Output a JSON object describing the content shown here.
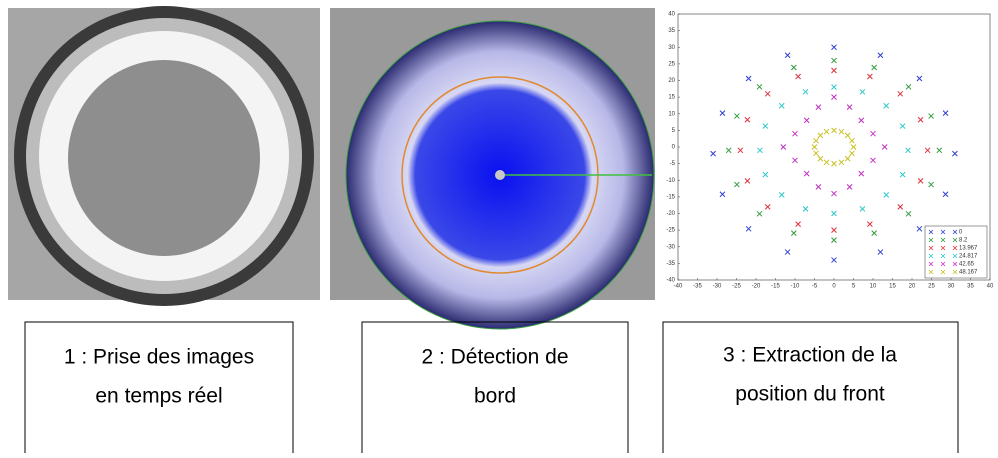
{
  "chart_data": {
    "type": "scatter",
    "xlim": [
      -40,
      40
    ],
    "ylim": [
      -40,
      40
    ],
    "xticks": [
      -40,
      -35,
      -30,
      -25,
      -20,
      -15,
      -10,
      -5,
      0,
      5,
      10,
      15,
      20,
      25,
      30,
      35,
      40
    ],
    "yticks": [
      -40,
      -35,
      -30,
      -25,
      -20,
      -15,
      -10,
      -5,
      0,
      5,
      10,
      15,
      20,
      25,
      30,
      35,
      40
    ],
    "legend": "lower right",
    "series": [
      {
        "name": "0",
        "color": "#2e3fd0",
        "x": [
          31,
          28.6,
          21.9,
          11.9,
          0,
          -11.9,
          -21.9,
          -28.6,
          -31,
          -28.6,
          -21.9,
          -11.9,
          0,
          11.9,
          21.9,
          28.6
        ],
        "values": [
          -2,
          10.2,
          20.6,
          27.6,
          30,
          27.6,
          20.6,
          10.2,
          -2,
          -14.2,
          -24.6,
          -31.6,
          -34,
          -31.6,
          -24.6,
          -14.2
        ]
      },
      {
        "name": "8.2",
        "color": "#2e9a3a",
        "x": [
          27,
          24.9,
          19.1,
          10.3,
          0,
          -10.3,
          -19.1,
          -24.9,
          -27,
          -24.9,
          -19.1,
          -10.3,
          0,
          10.3,
          19.1,
          24.9
        ],
        "values": [
          -1,
          9.3,
          18.1,
          23.9,
          26,
          23.9,
          18.1,
          9.3,
          -1,
          -11.3,
          -20.1,
          -25.9,
          -28,
          -25.9,
          -20.1,
          -11.3
        ]
      },
      {
        "name": "13.967",
        "color": "#e0303a",
        "x": [
          24,
          22.2,
          17,
          9.2,
          0,
          -9.2,
          -17,
          -22.2,
          -24,
          -22.2,
          -17,
          -9.2,
          0,
          9.2,
          17,
          22.2
        ],
        "values": [
          -1,
          8.2,
          16,
          21.2,
          23,
          21.2,
          16,
          8.2,
          -1,
          -10.2,
          -18,
          -23.2,
          -25,
          -23.2,
          -18,
          -10.2
        ]
      },
      {
        "name": "24.817",
        "color": "#2ec8c8",
        "x": [
          19,
          17.6,
          13.4,
          7.3,
          0,
          -7.3,
          -13.4,
          -17.6,
          -19,
          -17.6,
          -13.4,
          -7.3,
          0,
          7.3,
          13.4,
          17.6
        ],
        "values": [
          -1,
          6.3,
          12.4,
          16.6,
          18,
          16.6,
          12.4,
          6.3,
          -1,
          -8.3,
          -14.4,
          -18.6,
          -20,
          -18.6,
          -14.4,
          -8.3
        ]
      },
      {
        "name": "42.65",
        "color": "#c030c0",
        "x": [
          13,
          10,
          7,
          4,
          0,
          -4,
          -7,
          -10,
          -13,
          -10,
          -7,
          -4,
          0,
          4,
          7,
          10
        ],
        "values": [
          0,
          4,
          8,
          12,
          15,
          12,
          8,
          4,
          0,
          -4,
          -8,
          -12,
          -14,
          -12,
          -8,
          -4
        ]
      },
      {
        "name": "48.167",
        "color": "#c8c020",
        "x": [
          5,
          4.6,
          3.5,
          1.9,
          0,
          -1.9,
          -3.5,
          -4.6,
          -5,
          -4.6,
          -3.5,
          -1.9,
          0,
          1.9,
          3.5,
          4.6
        ],
        "values": [
          0,
          1.9,
          3.5,
          4.6,
          5,
          4.6,
          3.5,
          1.9,
          0,
          -1.9,
          -3.5,
          -4.6,
          -5,
          -4.6,
          -3.5,
          -1.9
        ]
      }
    ]
  },
  "captions": [
    [
      "1 : Prise des images",
      "en temps réel"
    ],
    [
      "2 : Détection de",
      "bord"
    ],
    [
      "3 : Extraction de la",
      "position du front"
    ]
  ]
}
